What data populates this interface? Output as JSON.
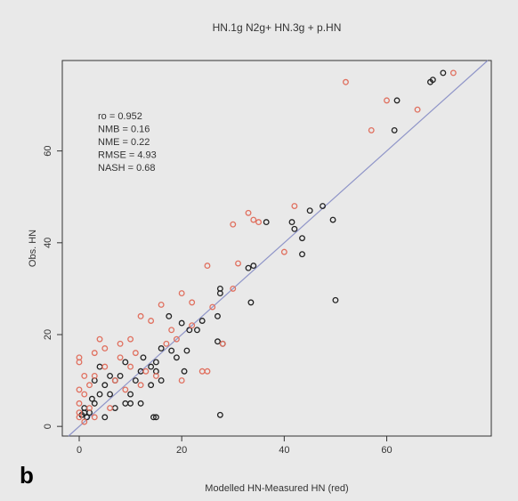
{
  "chart_data": {
    "type": "scatter",
    "title": "HN.1g N2g+ HN.3g + p.HN",
    "x_label": "Modelled HN-Measured HN (red)",
    "y_label": "Obs. HN",
    "annotations": [
      "ro = 0.952",
      "NMB = 0.16",
      "NME = 0.22",
      "RMSE = 4.93",
      "NASH = 0.68"
    ],
    "panel_label": "b",
    "xlim": [
      -3.3,
      80.4
    ],
    "ylim": [
      -2.1,
      79.7
    ],
    "xticks": [
      0,
      20,
      40,
      60
    ],
    "yticks": [
      0,
      20,
      40,
      60
    ],
    "identity_line": true,
    "identity_color": "#8f95c8",
    "series": [
      {
        "color": "#222222",
        "x": [
          71,
          69,
          68.5,
          62,
          61.5,
          49.5,
          50,
          47.5,
          45,
          41.5,
          36.5,
          43.5,
          43.5,
          42,
          34,
          33,
          33.5,
          27.5,
          27.5,
          27,
          27,
          28,
          27.5,
          24,
          23,
          21.5,
          20,
          21,
          20.5,
          17.5,
          18,
          16,
          15,
          15,
          14,
          14,
          12.5,
          12,
          11,
          10,
          9,
          9,
          8,
          7,
          6,
          5,
          4,
          3,
          2,
          1.5,
          1,
          0.5,
          3,
          4,
          6,
          10,
          15,
          14.5,
          16,
          19,
          12,
          5,
          2.5,
          1,
          7
        ],
        "y": [
          77,
          75.5,
          75,
          71,
          64.5,
          45,
          27.5,
          48,
          47,
          44.5,
          44.5,
          41,
          37.5,
          43,
          35,
          34.5,
          27,
          30,
          29,
          24,
          18.5,
          18,
          2.5,
          23,
          21,
          21,
          22.5,
          16.5,
          12,
          24,
          16.5,
          17,
          14,
          12,
          13,
          9,
          15,
          12,
          10,
          7,
          5,
          14,
          11,
          10,
          7,
          9,
          7,
          5,
          3,
          2,
          4,
          2.5,
          10,
          13,
          11,
          5,
          2,
          2,
          10,
          15,
          5,
          2,
          6,
          3,
          4
        ]
      },
      {
        "color": "#e0705f",
        "x": [
          73,
          66,
          60,
          57,
          52,
          35,
          33,
          34,
          31,
          40,
          42,
          30,
          25,
          26,
          25,
          22,
          20,
          18,
          16,
          14,
          12,
          10,
          8,
          5,
          4,
          3,
          0,
          0,
          1,
          0,
          0,
          1,
          0,
          0,
          2,
          3,
          5,
          7,
          8,
          10,
          11,
          13,
          15,
          17,
          19,
          20,
          24,
          22,
          28,
          30,
          6,
          3,
          1,
          2,
          9,
          12
        ],
        "y": [
          77,
          69,
          71,
          64.5,
          75,
          44.5,
          46.5,
          45,
          35.5,
          38,
          48,
          44,
          35,
          26,
          12,
          27,
          29,
          21,
          26.5,
          23,
          24,
          19,
          18,
          17,
          19,
          16,
          15,
          14,
          11,
          8,
          5,
          7,
          2,
          3,
          9,
          11,
          13,
          10,
          15,
          13,
          16,
          12,
          11,
          18,
          19,
          10,
          12,
          22,
          18,
          30,
          4,
          2,
          1,
          4,
          8,
          9
        ]
      }
    ]
  }
}
